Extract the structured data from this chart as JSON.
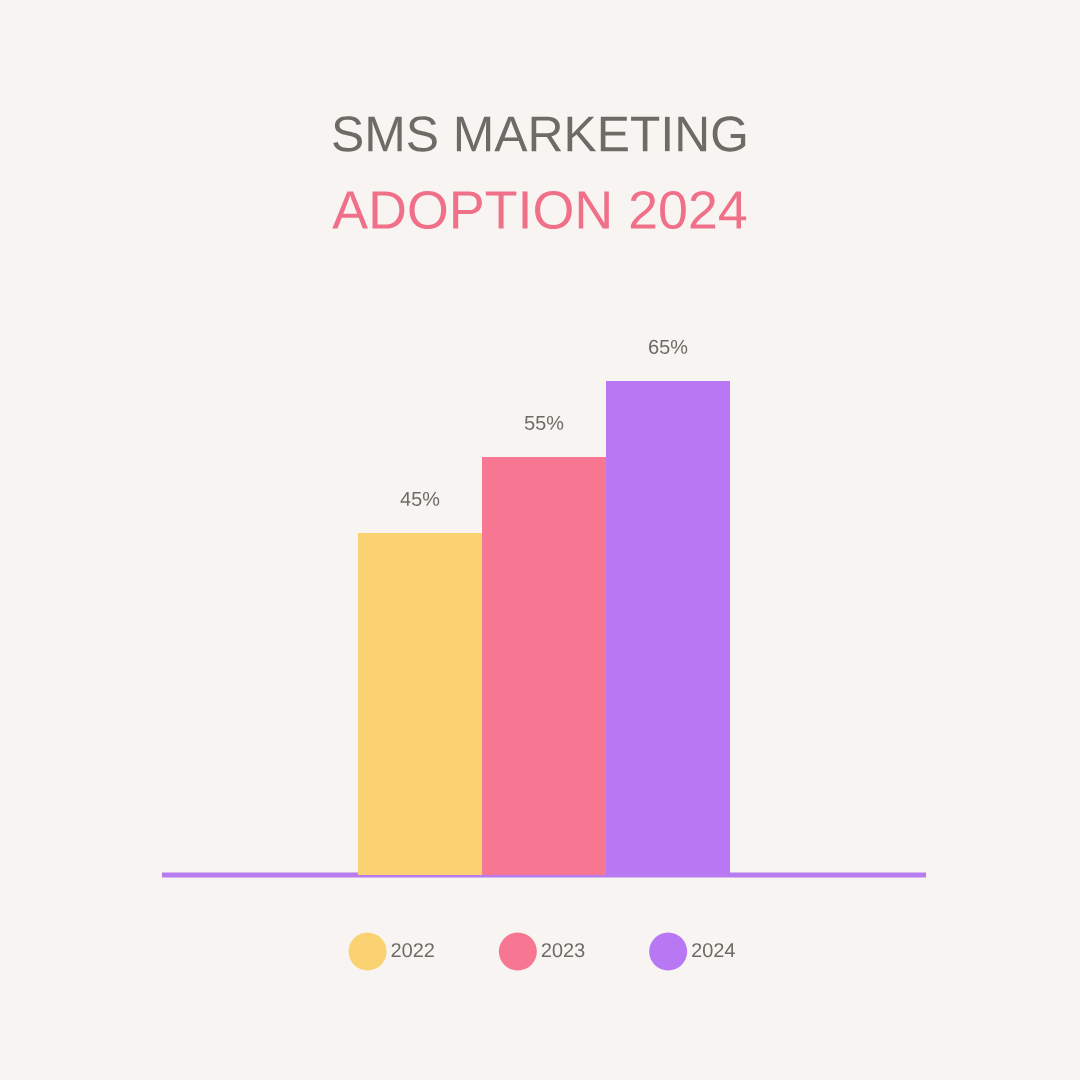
{
  "chart_data": {
    "type": "bar",
    "title": "SMS MARKETING",
    "subtitle": "ADOPTION 2024",
    "categories": [
      null
    ],
    "series": [
      {
        "name": "2022",
        "color": "#fbd271",
        "values": [
          45
        ],
        "value_labels": [
          "45%"
        ]
      },
      {
        "name": "2023",
        "color": "#f77792",
        "values": [
          55
        ],
        "value_labels": [
          "55%"
        ]
      },
      {
        "name": "2024",
        "color": "#b877f3",
        "values": [
          65
        ],
        "value_labels": [
          "65%"
        ]
      }
    ],
    "legend": "bottom"
  }
}
